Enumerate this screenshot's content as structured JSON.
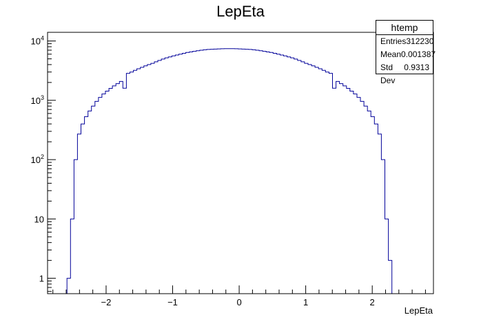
{
  "title": "LepEta",
  "stats": {
    "name": "htemp",
    "rows": [
      {
        "label": "Entries",
        "value": "312230"
      },
      {
        "label": "Mean",
        "value": "0.001387"
      },
      {
        "label": "Std Dev",
        "value": "0.9313"
      }
    ]
  },
  "colors": {
    "line": "#000099",
    "axis": "#000000"
  },
  "chart_data": {
    "type": "histogram",
    "title": "LepEta",
    "xlabel": "LepEta",
    "ylabel": "",
    "xlim": [
      -2.88,
      2.92
    ],
    "ylim": [
      0.55,
      14000
    ],
    "log_y": true,
    "grid": false,
    "x_ticks": [
      -2,
      -1,
      0,
      1,
      2
    ],
    "x_tick_labels": [
      "−2",
      "−1",
      "0",
      "1",
      "2"
    ],
    "y_ticks": [
      1,
      10,
      100,
      1000,
      10000
    ],
    "y_tick_labels": [
      "1",
      "10",
      "10^2",
      "10^3",
      "10^4"
    ],
    "bin_edges_start": -2.64,
    "bin_width": 0.0525,
    "counts": [
      0.5,
      1,
      10,
      100,
      270,
      400,
      530,
      660,
      800,
      960,
      1120,
      1280,
      1430,
      1590,
      1750,
      1910,
      2080,
      1600,
      2850,
      3000,
      3200,
      3400,
      3600,
      3800,
      4000,
      4200,
      4450,
      4700,
      4950,
      5200,
      5400,
      5600,
      5800,
      6000,
      6200,
      6400,
      6550,
      6700,
      6850,
      7000,
      7100,
      7200,
      7250,
      7300,
      7350,
      7400,
      7420,
      7430,
      7420,
      7400,
      7350,
      7300,
      7250,
      7200,
      7100,
      7000,
      6850,
      6700,
      6550,
      6400,
      6200,
      6000,
      5800,
      5600,
      5400,
      5200,
      4950,
      4700,
      4450,
      4200,
      4000,
      3800,
      3600,
      3400,
      3200,
      3000,
      2850,
      1600,
      2080,
      1910,
      1750,
      1590,
      1430,
      1280,
      1120,
      960,
      800,
      660,
      530,
      400,
      270,
      100,
      10,
      2,
      0.5
    ]
  }
}
